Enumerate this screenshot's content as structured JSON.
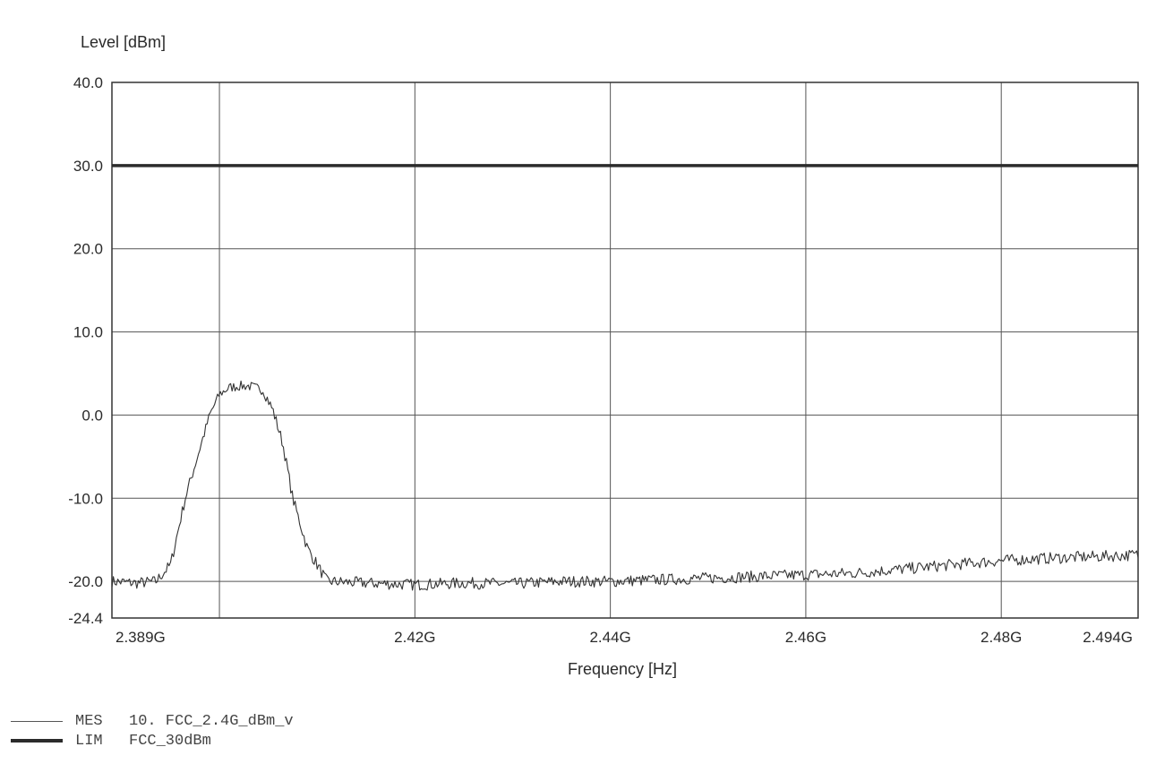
{
  "chart_data": {
    "type": "line",
    "xlabel": "Frequency [Hz]",
    "ylabel": "Level [dBm]",
    "xlim": [
      2389000000.0,
      2494000000.0
    ],
    "ylim": [
      -24.4,
      40.0
    ],
    "x_ticks": [
      {
        "value": 2389000000.0,
        "label": "2.389G"
      },
      {
        "value": 2420000000.0,
        "label": "2.42G"
      },
      {
        "value": 2440000000.0,
        "label": "2.44G"
      },
      {
        "value": 2460000000.0,
        "label": "2.46G"
      },
      {
        "value": 2480000000.0,
        "label": "2.48G"
      },
      {
        "value": 2494000000.0,
        "label": "2.494G"
      }
    ],
    "x_grid": [
      2400000000.0,
      2420000000.0,
      2440000000.0,
      2460000000.0,
      2480000000.0
    ],
    "y_ticks": [
      {
        "value": 40.0,
        "label": "40.0"
      },
      {
        "value": 30.0,
        "label": "30.0"
      },
      {
        "value": 20.0,
        "label": "20.0"
      },
      {
        "value": 10.0,
        "label": "10.0"
      },
      {
        "value": 0.0,
        "label": "0.0"
      },
      {
        "value": -10.0,
        "label": "-10.0"
      },
      {
        "value": -20.0,
        "label": "-20.0"
      },
      {
        "value": -24.4,
        "label": "-24.4"
      }
    ],
    "grid": true,
    "legend_position": "bottom-left",
    "series": [
      {
        "name": "MES",
        "label": "10. FCC_2.4G_dBm_v",
        "style": "thin",
        "color": "#333333",
        "x": [
          2389000000.0,
          2391500000.0,
          2393500000.0,
          2395000000.0,
          2396500000.0,
          2398000000.0,
          2399000000.0,
          2400000000.0,
          2401000000.0,
          2402000000.0,
          2403000000.0,
          2404500000.0,
          2405500000.0,
          2406500000.0,
          2407500000.0,
          2409000000.0,
          2411000000.0,
          2415000000.0,
          2420000000.0,
          2425000000.0,
          2430000000.0,
          2435000000.0,
          2440000000.0,
          2445000000.0,
          2450000000.0,
          2455000000.0,
          2460000000.0,
          2465000000.0,
          2470000000.0,
          2475000000.0,
          2480000000.0,
          2485000000.0,
          2490000000.0,
          2494000000.0
        ],
        "y": [
          -20.0,
          -20.2,
          -20.0,
          -18.0,
          -10.0,
          -4.0,
          0.0,
          2.5,
          3.3,
          3.5,
          3.5,
          3.0,
          0.5,
          -3.5,
          -10.0,
          -16.0,
          -20.0,
          -20.2,
          -20.4,
          -20.2,
          -20.3,
          -20.0,
          -20.0,
          -19.8,
          -19.6,
          -19.4,
          -19.2,
          -19.0,
          -18.5,
          -18.0,
          -17.5,
          -17.2,
          -17.0,
          -16.8
        ]
      },
      {
        "name": "LIM",
        "label": "FCC_30dBm",
        "style": "thick",
        "color": "#2b2b2b",
        "x": [
          2389000000.0,
          2494000000.0
        ],
        "y": [
          30.0,
          30.0
        ]
      }
    ]
  }
}
